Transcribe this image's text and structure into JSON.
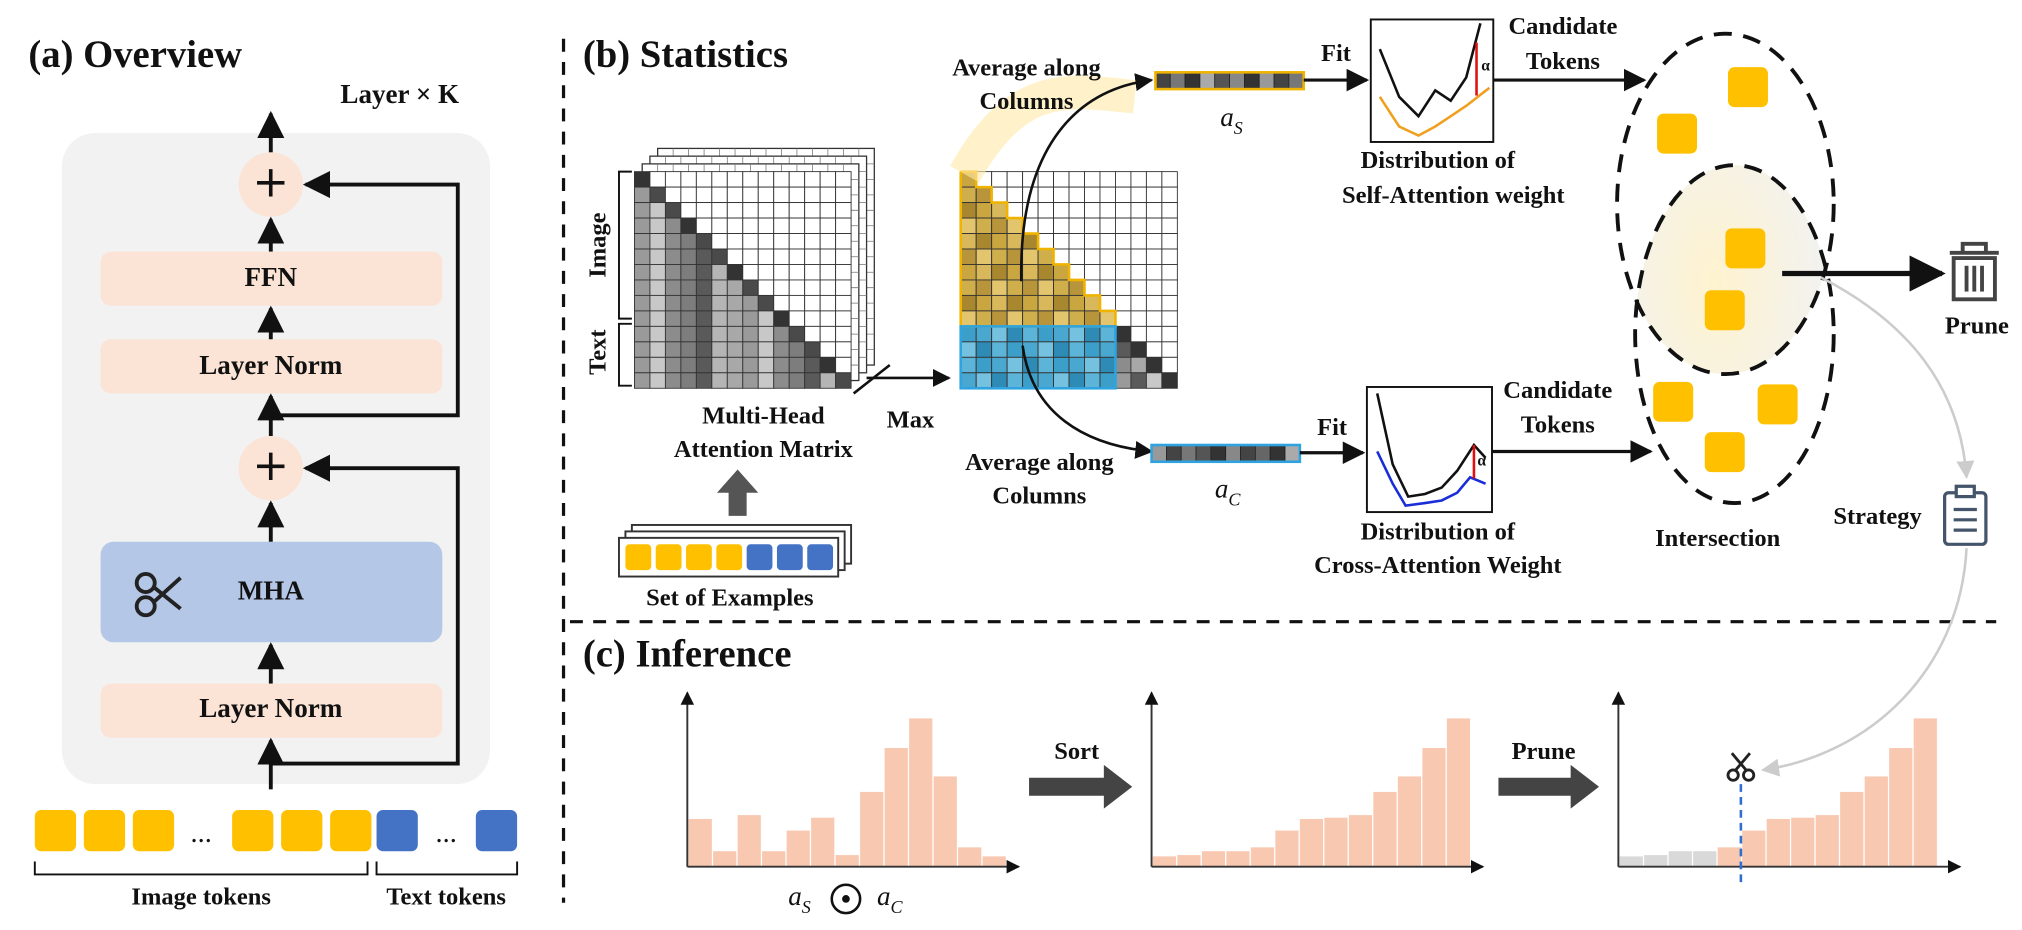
{
  "overview": {
    "title": "(a) Overview",
    "layer_label": "Layer × K",
    "blocks": {
      "ffn": "FFN",
      "norm_top": "Layer Norm",
      "mha": "MHA",
      "norm_bottom": "Layer Norm"
    },
    "plus": "+",
    "ellipsis": "...",
    "image_tokens": "Image tokens",
    "text_tokens": "Text tokens"
  },
  "statistics": {
    "title": "(b) Statistics",
    "image": "Image",
    "text": "Text",
    "matrix_label": [
      "Multi-Head",
      "Attention Matrix"
    ],
    "examples": "Set of Examples",
    "max": "Max",
    "self": {
      "average": [
        "Average along",
        "Columns"
      ],
      "vector": {
        "symbol": "a",
        "sub": "S"
      },
      "fit": "Fit",
      "distribution": [
        "Distribution of",
        "Self-Attention weight"
      ],
      "candidate": [
        "Candidate",
        "Tokens"
      ],
      "alpha": "α"
    },
    "cross": {
      "average": [
        "Average along",
        "Columns"
      ],
      "vector": {
        "symbol": "a",
        "sub": "C"
      },
      "fit": "Fit",
      "distribution": [
        "Distribution of",
        "Cross-Attention Weight"
      ],
      "candidate": [
        "Candidate",
        "Tokens"
      ],
      "alpha": "α"
    },
    "intersection": "Intersection",
    "prune": "Prune",
    "strategy": "Strategy"
  },
  "inference": {
    "title": "(c) Inference",
    "sort": "Sort",
    "prune": "Prune",
    "product": {
      "left": {
        "symbol": "a",
        "sub": "S"
      },
      "right": {
        "symbol": "a",
        "sub": "C"
      }
    }
  }
}
